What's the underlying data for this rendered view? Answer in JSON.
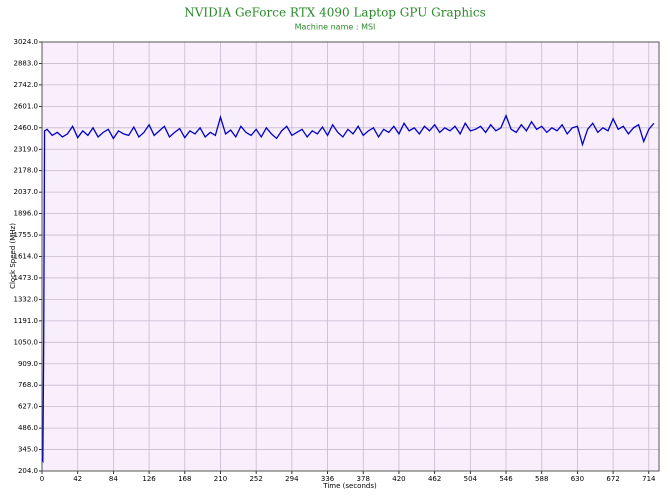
{
  "chart_data": {
    "type": "line",
    "title": "NVIDIA GeForce RTX 4090 Laptop GPU Graphics",
    "subtitle": "Machine name : MSI",
    "x_label": "Time (seconds)",
    "y_label": "Clock Speed (MHz)",
    "grid": true,
    "xlim": [
      0,
      726
    ],
    "ylim": [
      204,
      3024
    ],
    "xticks": [
      0,
      42,
      84,
      126,
      168,
      210,
      252,
      294,
      336,
      378,
      420,
      462,
      504,
      546,
      588,
      630,
      672,
      714
    ],
    "yticks": [
      {
        "value": 204,
        "label": "204.0"
      },
      {
        "value": 345,
        "label": "345.0"
      },
      {
        "value": 486,
        "label": "486.0"
      },
      {
        "value": 627,
        "label": "627.0"
      },
      {
        "value": 768,
        "label": "768.0"
      },
      {
        "value": 909,
        "label": "909.0"
      },
      {
        "value": 1050,
        "label": "1050.0"
      },
      {
        "value": 1191,
        "label": "1191.0"
      },
      {
        "value": 1332,
        "label": "1332.0"
      },
      {
        "value": 1473,
        "label": "1473.0"
      },
      {
        "value": 1614,
        "label": "1614.0"
      },
      {
        "value": 1755,
        "label": "1755.0"
      },
      {
        "value": 1896,
        "label": "1896.0"
      },
      {
        "value": 2037,
        "label": "2037.0"
      },
      {
        "value": 2178,
        "label": "2178.0"
      },
      {
        "value": 2319,
        "label": "2319.0"
      },
      {
        "value": 2460,
        "label": "2460.0"
      },
      {
        "value": 2601,
        "label": "2601.0"
      },
      {
        "value": 2742,
        "label": "2742.0"
      },
      {
        "value": 2883,
        "label": "2883.0"
      },
      {
        "value": 3024,
        "label": "3024.0"
      }
    ],
    "x": [
      0,
      1,
      2,
      3,
      6,
      12,
      18,
      24,
      30,
      36,
      42,
      48,
      54,
      60,
      66,
      72,
      78,
      84,
      90,
      96,
      102,
      108,
      114,
      120,
      126,
      132,
      138,
      144,
      150,
      156,
      162,
      168,
      174,
      180,
      186,
      192,
      198,
      204,
      210,
      216,
      222,
      228,
      234,
      240,
      246,
      252,
      258,
      264,
      270,
      276,
      282,
      288,
      294,
      300,
      306,
      312,
      318,
      324,
      330,
      336,
      342,
      348,
      354,
      360,
      366,
      372,
      378,
      384,
      390,
      396,
      402,
      408,
      414,
      420,
      426,
      432,
      438,
      444,
      450,
      456,
      462,
      468,
      474,
      480,
      486,
      492,
      498,
      504,
      510,
      516,
      522,
      528,
      534,
      540,
      546,
      552,
      558,
      564,
      570,
      576,
      582,
      588,
      594,
      600,
      606,
      612,
      618,
      624,
      630,
      636,
      642,
      648,
      654,
      660,
      666,
      672,
      678,
      684,
      690,
      696,
      702,
      708,
      714,
      720
    ],
    "series": [
      {
        "name": "Clock Speed",
        "color": "#0000c8",
        "values": [
          280,
          270,
          1050,
          2440,
          2450,
          2410,
          2430,
          2400,
          2420,
          2470,
          2395,
          2440,
          2410,
          2460,
          2400,
          2430,
          2450,
          2390,
          2440,
          2420,
          2410,
          2465,
          2400,
          2430,
          2480,
          2410,
          2440,
          2470,
          2400,
          2430,
          2455,
          2395,
          2440,
          2420,
          2460,
          2400,
          2430,
          2410,
          2530,
          2420,
          2445,
          2400,
          2470,
          2430,
          2410,
          2450,
          2400,
          2460,
          2420,
          2390,
          2440,
          2470,
          2410,
          2430,
          2450,
          2400,
          2440,
          2420,
          2465,
          2410,
          2480,
          2430,
          2400,
          2450,
          2420,
          2470,
          2410,
          2440,
          2460,
          2400,
          2450,
          2430,
          2470,
          2420,
          2490,
          2440,
          2460,
          2420,
          2470,
          2440,
          2480,
          2430,
          2460,
          2440,
          2470,
          2420,
          2490,
          2440,
          2450,
          2470,
          2430,
          2480,
          2440,
          2460,
          2540,
          2450,
          2430,
          2480,
          2440,
          2500,
          2450,
          2470,
          2430,
          2460,
          2440,
          2480,
          2420,
          2460,
          2470,
          2350,
          2450,
          2490,
          2430,
          2460,
          2440,
          2520,
          2450,
          2470,
          2420,
          2460,
          2480,
          2370,
          2450,
          2490
        ]
      }
    ]
  }
}
